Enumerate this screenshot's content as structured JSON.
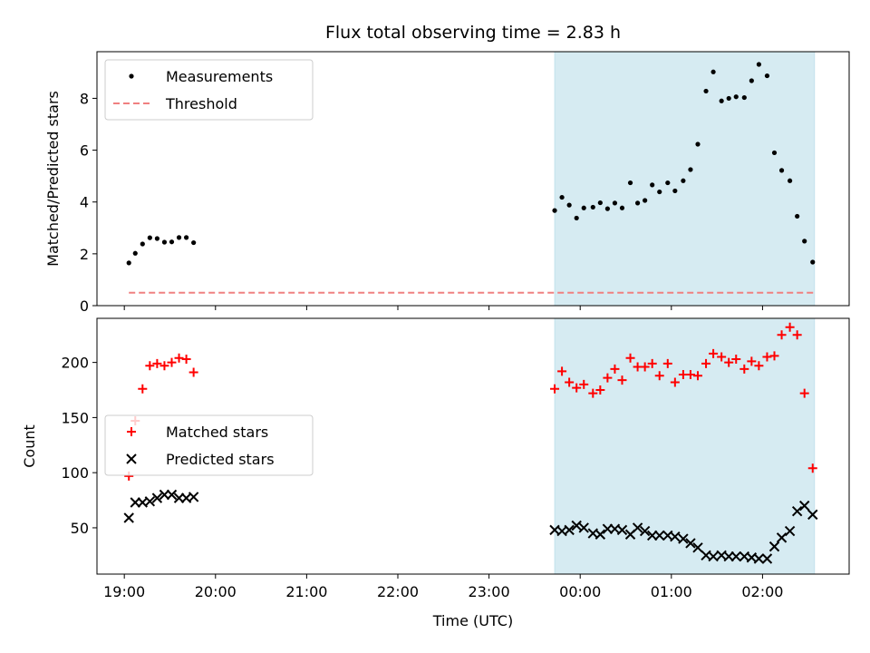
{
  "chart_data": {
    "title": "Flux total observing time = 2.83 h",
    "xlabel": "Time (UTC)",
    "x_unit": "hours after 00:00 UTC (negative = previous evening)",
    "xlim": [
      -5.3,
      2.95
    ],
    "x_ticks": [
      {
        "value": -5,
        "label": "19:00"
      },
      {
        "value": -4,
        "label": "20:00"
      },
      {
        "value": -3,
        "label": "21:00"
      },
      {
        "value": -2,
        "label": "22:00"
      },
      {
        "value": -1,
        "label": "23:00"
      },
      {
        "value": 0,
        "label": "00:00"
      },
      {
        "value": 1,
        "label": "01:00"
      },
      {
        "value": 2,
        "label": "02:00"
      }
    ],
    "shaded_span": {
      "from": -0.28,
      "to": 2.57,
      "color": "#add8e6"
    },
    "panels": [
      {
        "type": "scatter",
        "ylabel": "Matched/Predicted stars",
        "ylim": [
          0,
          9.8
        ],
        "y_ticks": [
          0,
          2,
          4,
          6,
          8
        ],
        "series": [
          {
            "name": "Measurements",
            "kind": "scatter",
            "marker": "dot",
            "color": "#000000",
            "points": [
              [
                -4.95,
                1.65
              ],
              [
                -4.88,
                2.02
              ],
              [
                -4.8,
                2.38
              ],
              [
                -4.72,
                2.62
              ],
              [
                -4.64,
                2.59
              ],
              [
                -4.56,
                2.45
              ],
              [
                -4.48,
                2.46
              ],
              [
                -4.4,
                2.63
              ],
              [
                -4.32,
                2.63
              ],
              [
                -4.24,
                2.43
              ],
              [
                -0.28,
                3.67
              ],
              [
                -0.2,
                4.18
              ],
              [
                -0.12,
                3.88
              ],
              [
                -0.04,
                3.38
              ],
              [
                0.04,
                3.77
              ],
              [
                0.14,
                3.8
              ],
              [
                0.22,
                3.97
              ],
              [
                0.3,
                3.74
              ],
              [
                0.38,
                3.96
              ],
              [
                0.46,
                3.77
              ],
              [
                0.55,
                4.74
              ],
              [
                0.63,
                3.96
              ],
              [
                0.71,
                4.06
              ],
              [
                0.79,
                4.66
              ],
              [
                0.87,
                4.39
              ],
              [
                0.96,
                4.74
              ],
              [
                1.04,
                4.43
              ],
              [
                1.13,
                4.82
              ],
              [
                1.21,
                5.25
              ],
              [
                1.29,
                6.23
              ],
              [
                1.38,
                8.28
              ],
              [
                1.46,
                9.02
              ],
              [
                1.55,
                7.9
              ],
              [
                1.63,
                8.0
              ],
              [
                1.71,
                8.06
              ],
              [
                1.8,
                8.03
              ],
              [
                1.88,
                8.68
              ],
              [
                1.96,
                9.31
              ],
              [
                2.05,
                8.87
              ],
              [
                2.13,
                5.9
              ],
              [
                2.21,
                5.22
              ],
              [
                2.3,
                4.82
              ],
              [
                2.38,
                3.45
              ],
              [
                2.46,
                2.49
              ],
              [
                2.55,
                1.68
              ]
            ]
          },
          {
            "name": "Threshold",
            "kind": "dashed-line",
            "color": "#f08080",
            "y": 0.5,
            "x_range": [
              -4.95,
              2.57
            ]
          }
        ],
        "legend": "upper left"
      },
      {
        "type": "scatter",
        "ylabel": "Count",
        "ylim": [
          8,
          240
        ],
        "y_ticks": [
          50,
          100,
          150,
          200
        ],
        "series": [
          {
            "name": "Matched stars",
            "kind": "scatter",
            "marker": "plus",
            "color": "#ff0000",
            "points": [
              [
                -4.95,
                97
              ],
              [
                -4.88,
                147
              ],
              [
                -4.8,
                176
              ],
              [
                -4.72,
                197
              ],
              [
                -4.64,
                199
              ],
              [
                -4.56,
                197
              ],
              [
                -4.48,
                200
              ],
              [
                -4.4,
                204
              ],
              [
                -4.32,
                203
              ],
              [
                -4.24,
                191
              ],
              [
                -0.28,
                176
              ],
              [
                -0.2,
                192
              ],
              [
                -0.12,
                182
              ],
              [
                -0.04,
                177
              ],
              [
                0.04,
                180
              ],
              [
                0.14,
                172
              ],
              [
                0.22,
                175
              ],
              [
                0.3,
                186
              ],
              [
                0.38,
                194
              ],
              [
                0.46,
                184
              ],
              [
                0.55,
                204
              ],
              [
                0.63,
                196
              ],
              [
                0.71,
                196
              ],
              [
                0.79,
                199
              ],
              [
                0.87,
                188
              ],
              [
                0.96,
                199
              ],
              [
                1.04,
                182
              ],
              [
                1.13,
                189
              ],
              [
                1.21,
                189
              ],
              [
                1.29,
                188
              ],
              [
                1.38,
                199
              ],
              [
                1.46,
                208
              ],
              [
                1.55,
                205
              ],
              [
                1.63,
                200
              ],
              [
                1.71,
                203
              ],
              [
                1.8,
                194
              ],
              [
                1.88,
                201
              ],
              [
                1.96,
                197
              ],
              [
                2.05,
                205
              ],
              [
                2.13,
                206
              ],
              [
                2.21,
                225
              ],
              [
                2.3,
                232
              ],
              [
                2.38,
                225
              ],
              [
                2.46,
                172
              ],
              [
                2.55,
                104
              ]
            ]
          },
          {
            "name": "Predicted stars",
            "kind": "scatter",
            "marker": "x",
            "color": "#000000",
            "points": [
              [
                -4.95,
                59
              ],
              [
                -4.88,
                73
              ],
              [
                -4.8,
                73
              ],
              [
                -4.72,
                74
              ],
              [
                -4.64,
                77
              ],
              [
                -4.56,
                80
              ],
              [
                -4.48,
                80
              ],
              [
                -4.4,
                77
              ],
              [
                -4.32,
                77
              ],
              [
                -4.24,
                78
              ],
              [
                -0.28,
                48
              ],
              [
                -0.2,
                47
              ],
              [
                -0.12,
                48
              ],
              [
                -0.04,
                52
              ],
              [
                0.04,
                50
              ],
              [
                0.14,
                45
              ],
              [
                0.22,
                44
              ],
              [
                0.3,
                49
              ],
              [
                0.38,
                49
              ],
              [
                0.46,
                48
              ],
              [
                0.55,
                44
              ],
              [
                0.63,
                50
              ],
              [
                0.71,
                47
              ],
              [
                0.79,
                43
              ],
              [
                0.87,
                43
              ],
              [
                0.96,
                43
              ],
              [
                1.04,
                42
              ],
              [
                1.13,
                40
              ],
              [
                1.21,
                36
              ],
              [
                1.29,
                32
              ],
              [
                1.38,
                25
              ],
              [
                1.46,
                24
              ],
              [
                1.55,
                25
              ],
              [
                1.63,
                24
              ],
              [
                1.71,
                24
              ],
              [
                1.8,
                24
              ],
              [
                1.88,
                23
              ],
              [
                1.96,
                22
              ],
              [
                2.05,
                22
              ],
              [
                2.13,
                33
              ],
              [
                2.21,
                41
              ],
              [
                2.3,
                47
              ],
              [
                2.38,
                65
              ],
              [
                2.46,
                70
              ],
              [
                2.55,
                62
              ]
            ]
          }
        ],
        "legend": "center left"
      }
    ]
  }
}
